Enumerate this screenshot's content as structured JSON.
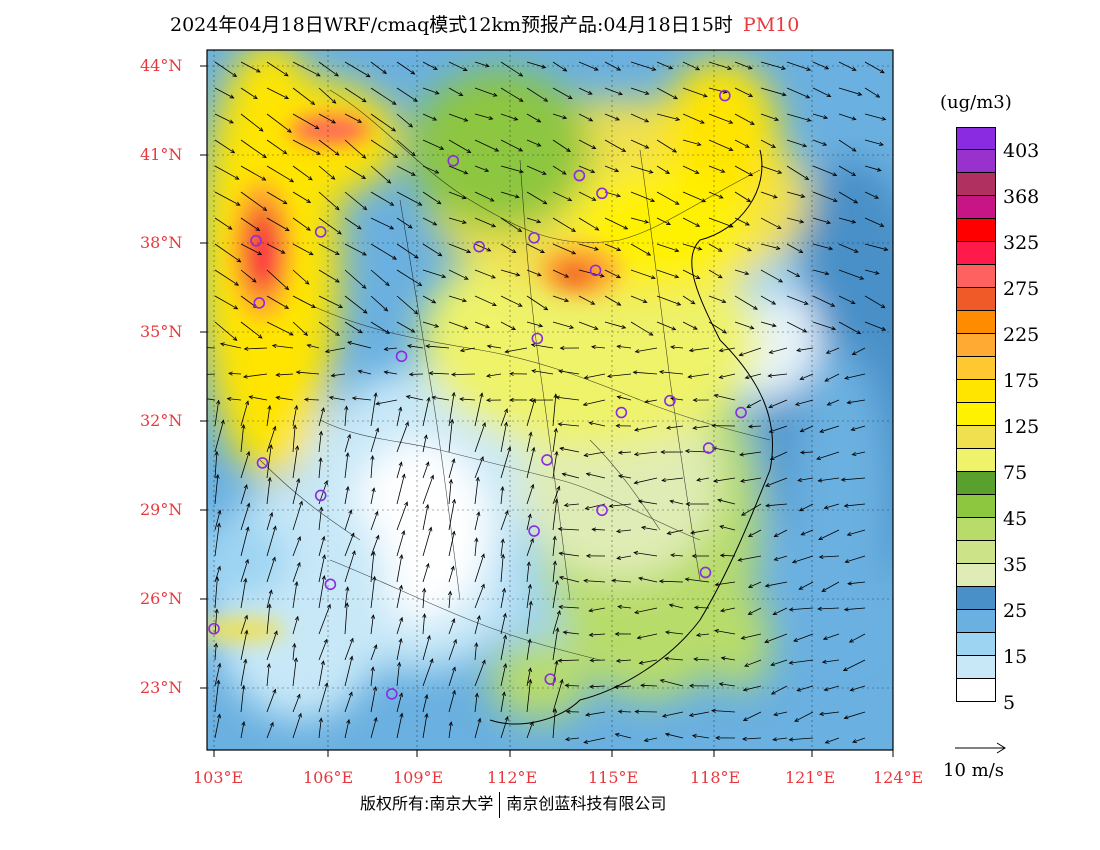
{
  "title": {
    "text": "2024年04月18日WRF/cmaq模式12km预报产品:04月18日15时",
    "species": "PM10"
  },
  "map": {
    "lat_labels": [
      "44°N",
      "41°N",
      "38°N",
      "35°N",
      "32°N",
      "29°N",
      "26°N",
      "23°N"
    ],
    "lon_labels": [
      "103°E",
      "106°E",
      "109°E",
      "112°E",
      "115°E",
      "118°E",
      "121°E",
      "124°E"
    ],
    "extent": {
      "lon": [
        103,
        124
      ],
      "lat": [
        21,
        44.5
      ]
    },
    "city_markers": [
      {
        "lon": 118.8,
        "lat": 43.0
      },
      {
        "lon": 110.4,
        "lat": 40.8
      },
      {
        "lon": 114.3,
        "lat": 40.3
      },
      {
        "lon": 115.0,
        "lat": 39.7
      },
      {
        "lon": 106.3,
        "lat": 38.4
      },
      {
        "lon": 104.3,
        "lat": 38.1
      },
      {
        "lon": 111.2,
        "lat": 37.9
      },
      {
        "lon": 112.9,
        "lat": 38.2
      },
      {
        "lon": 114.8,
        "lat": 37.1
      },
      {
        "lon": 104.4,
        "lat": 36.0
      },
      {
        "lon": 113.0,
        "lat": 34.8
      },
      {
        "lon": 108.8,
        "lat": 34.2
      },
      {
        "lon": 117.1,
        "lat": 32.7
      },
      {
        "lon": 115.6,
        "lat": 32.3
      },
      {
        "lon": 119.3,
        "lat": 32.3
      },
      {
        "lon": 104.5,
        "lat": 30.6
      },
      {
        "lon": 113.3,
        "lat": 30.7
      },
      {
        "lon": 118.3,
        "lat": 31.1
      },
      {
        "lon": 106.3,
        "lat": 29.5
      },
      {
        "lon": 115.0,
        "lat": 29.0
      },
      {
        "lon": 112.9,
        "lat": 28.3
      },
      {
        "lon": 106.6,
        "lat": 26.5
      },
      {
        "lon": 118.2,
        "lat": 26.9
      },
      {
        "lon": 103.0,
        "lat": 25.0
      },
      {
        "lon": 108.5,
        "lat": 22.8
      },
      {
        "lon": 113.4,
        "lat": 23.3
      }
    ]
  },
  "legend": {
    "unit": "(ug/m3)",
    "labels": [
      "403",
      "368",
      "325",
      "275",
      "225",
      "175",
      "125",
      "75",
      "45",
      "35",
      "25",
      "15",
      "5"
    ],
    "colors": [
      "#8a2be2",
      "#9932cc",
      "#b03060",
      "#c71585",
      "#ff0000",
      "#ff1a4a",
      "#ff6060",
      "#f05a28",
      "#ff8c00",
      "#ffaa33",
      "#ffc830",
      "#ffe500",
      "#fff200",
      "#f0e050",
      "#eef36b",
      "#5aa02c",
      "#8dc63f",
      "#b8dc6a",
      "#cde387",
      "#e0ecb5",
      "#4a90c8",
      "#6ab0e0",
      "#9dd4f2",
      "#c8e8f8",
      "#ffffff"
    ]
  },
  "wind_reference": {
    "label": "10 m/s"
  },
  "copyright": {
    "left": "版权所有:南京大学",
    "right": "南京创蓝科技有限公司"
  }
}
